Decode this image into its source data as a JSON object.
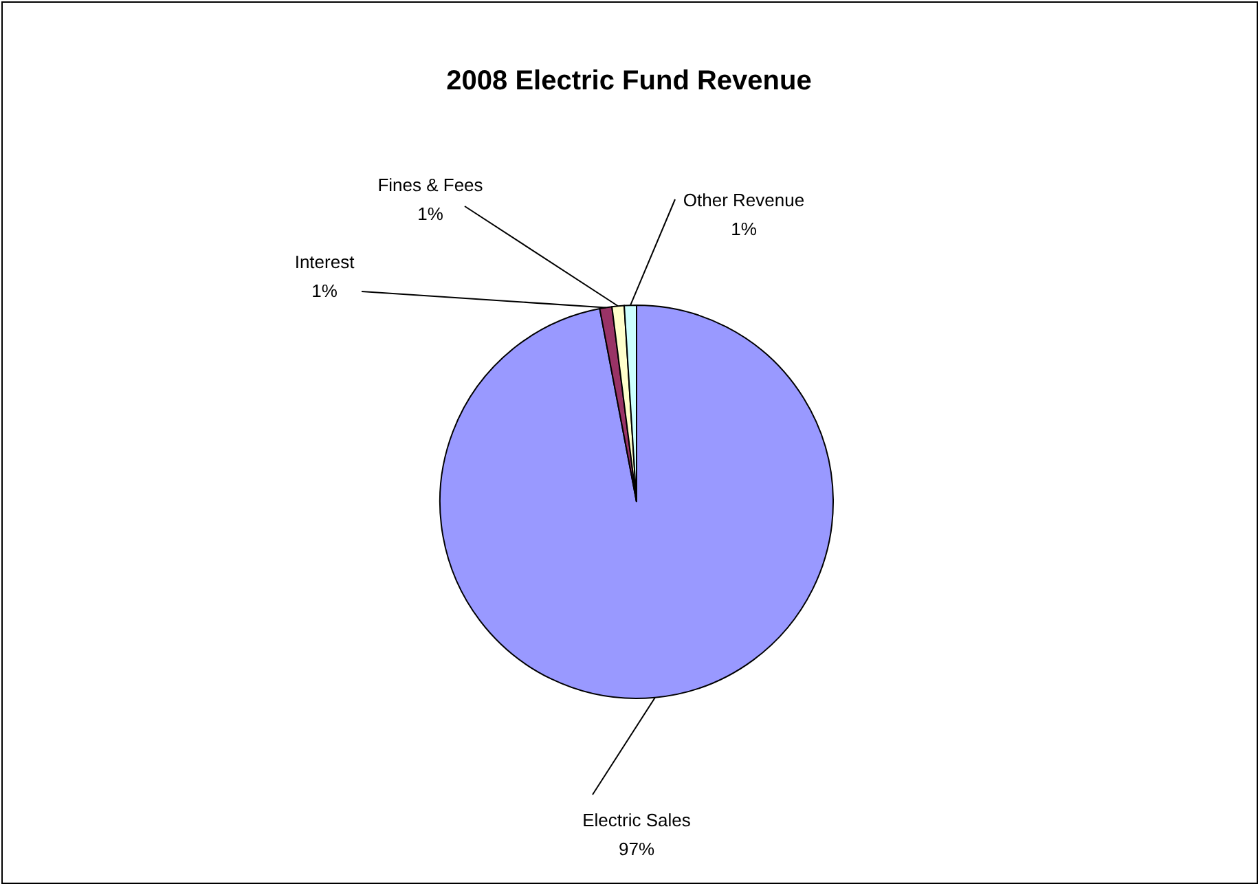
{
  "chart_data": {
    "type": "pie",
    "title": "2008 Electric Fund Revenue",
    "categories": [
      "Electric Sales",
      "Interest",
      "Fines & Fees",
      "Other Revenue"
    ],
    "values": [
      97,
      1,
      1,
      1
    ],
    "colors": [
      "#9999ff",
      "#993366",
      "#ffffcc",
      "#ccffff"
    ],
    "value_labels": [
      "97%",
      "1%",
      "1%",
      "1%"
    ],
    "legend": false
  }
}
